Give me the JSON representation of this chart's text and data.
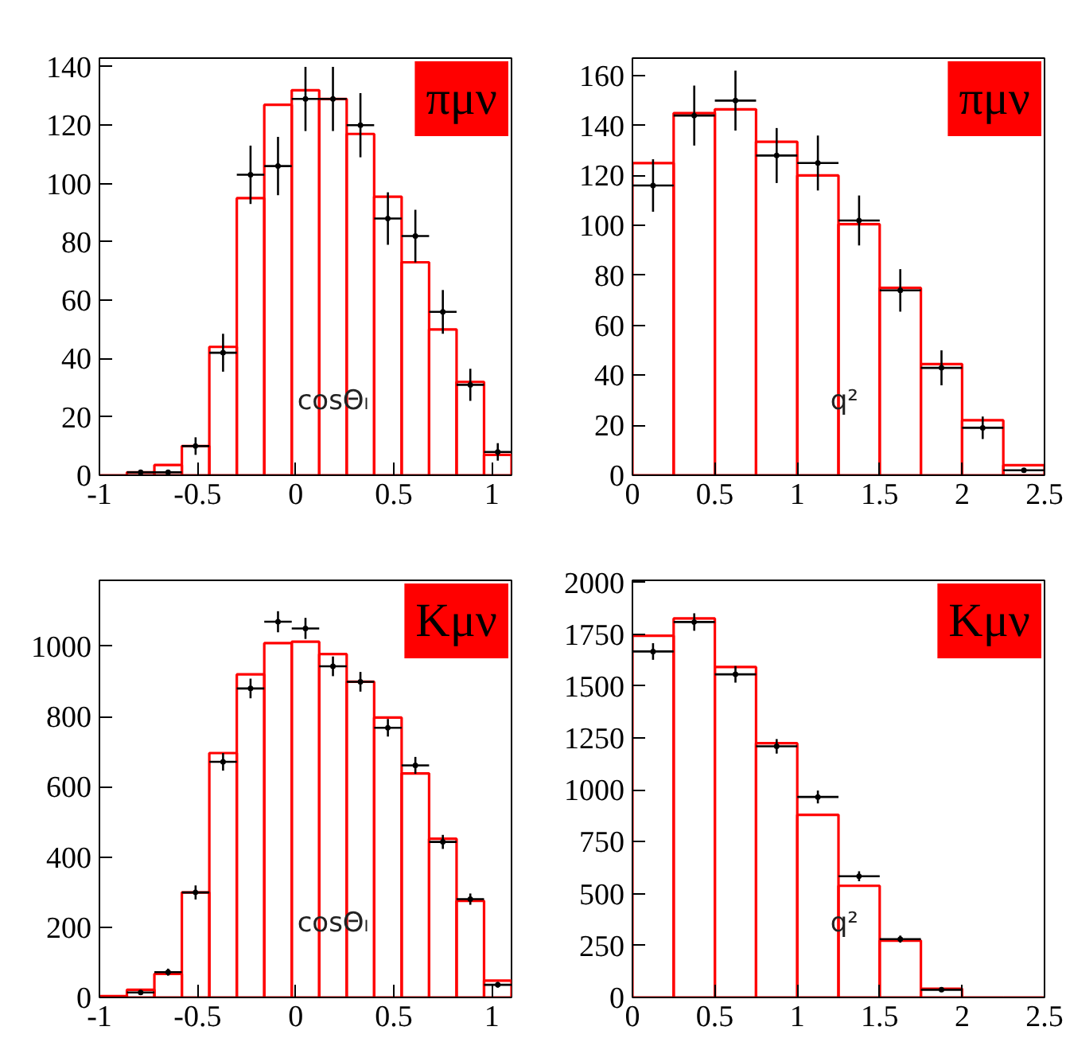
{
  "chart_data": [
    {
      "type": "histogram",
      "title": "πμν",
      "xlabel": "cosΘₗ",
      "bins": [
        -1,
        -0.86,
        -0.72,
        -0.58,
        -0.44,
        -0.3,
        -0.16,
        -0.02,
        0.12,
        0.26,
        0.4,
        0.54,
        0.68,
        0.82,
        0.96,
        1.1
      ],
      "xlim": [
        -1,
        1.1
      ],
      "xticks": [
        -1,
        -0.5,
        0,
        0.5,
        1
      ],
      "ylim": [
        0,
        143
      ],
      "yticks": [
        0,
        20,
        40,
        60,
        80,
        100,
        120,
        140
      ],
      "series": [
        {
          "color": "#ff0000",
          "values": [
            0,
            1,
            3.5,
            10,
            44,
            95,
            127,
            132,
            129,
            117,
            95.5,
            73,
            50,
            32,
            7
          ]
        },
        {
          "type": "scatter",
          "color": "#000000",
          "x": [
            -0.79,
            -0.65,
            -0.51,
            -0.37,
            -0.23,
            -0.09,
            0.05,
            0.19,
            0.33,
            0.47,
            0.61,
            0.75,
            0.89,
            1.03
          ],
          "values": [
            1,
            1,
            10,
            42,
            103,
            106,
            129,
            129,
            120,
            88,
            82,
            56,
            31,
            8
          ],
          "errors": [
            null,
            null,
            3,
            6.5,
            10,
            10,
            11,
            11,
            11,
            9,
            9,
            7.5,
            5.5,
            3
          ],
          "xerrors": [
            0.07,
            0.07,
            0.07,
            0.07,
            0.07,
            0.07,
            0.07,
            0.07,
            0.07,
            0.07,
            0.07,
            0.07,
            0.07,
            0.07
          ]
        }
      ]
    },
    {
      "type": "histogram",
      "title": "πμν",
      "xlabel": "q²",
      "bins": [
        0,
        0.25,
        0.5,
        0.75,
        1,
        1.25,
        1.5,
        1.75,
        2,
        2.25,
        2.5
      ],
      "xlim": [
        0,
        2.5
      ],
      "xticks": [
        0,
        0.5,
        1,
        1.5,
        2,
        2.5
      ],
      "ylim": [
        0,
        167
      ],
      "yticks": [
        0,
        20,
        40,
        60,
        80,
        100,
        120,
        140,
        160
      ],
      "series": [
        {
          "color": "#ff0000",
          "values": [
            125,
            145,
            146.5,
            133.5,
            120,
            100.5,
            75,
            44.5,
            22,
            4
          ]
        },
        {
          "type": "scatter",
          "color": "#000000",
          "x": [
            0.125,
            0.375,
            0.625,
            0.875,
            1.125,
            1.375,
            1.625,
            1.875,
            2.125,
            2.375
          ],
          "values": [
            116,
            144,
            150,
            128,
            125,
            102,
            74,
            43,
            19,
            2
          ],
          "errors": [
            10.5,
            12,
            12,
            11,
            11,
            10,
            8.5,
            7,
            4.5,
            null
          ],
          "xerrors": [
            0.125,
            0.125,
            0.125,
            0.125,
            0.125,
            0.125,
            0.125,
            0.125,
            0.125,
            0.125
          ]
        }
      ]
    },
    {
      "type": "histogram",
      "title": "Kμν",
      "xlabel": "cosΘₗ",
      "bins": [
        -1,
        -0.86,
        -0.72,
        -0.58,
        -0.44,
        -0.3,
        -0.16,
        -0.02,
        0.12,
        0.26,
        0.4,
        0.54,
        0.68,
        0.82,
        0.96,
        1.1
      ],
      "xlim": [
        -1,
        1.1
      ],
      "xticks": [
        -1,
        -0.5,
        0,
        0.5,
        1
      ],
      "ylim": [
        0,
        1188
      ],
      "yticks": [
        0,
        200,
        400,
        600,
        800,
        1000
      ],
      "series": [
        {
          "color": "#ff0000",
          "values": [
            4,
            22,
            67,
            299,
            696,
            920,
            1009,
            1013,
            978,
            899,
            797,
            638,
            452,
            275,
            48
          ]
        },
        {
          "type": "scatter",
          "color": "#000000",
          "x": [
            -0.79,
            -0.65,
            -0.51,
            -0.37,
            -0.23,
            -0.09,
            0.05,
            0.19,
            0.33,
            0.47,
            0.61,
            0.75,
            0.89,
            1.03
          ],
          "values": [
            14,
            72,
            299,
            671,
            880,
            1070,
            1051,
            943,
            899,
            768,
            661,
            443,
            280,
            36
          ],
          "errors": [
            5,
            10,
            20,
            25,
            28,
            30,
            30,
            28,
            28,
            25,
            24,
            20,
            16,
            8
          ],
          "xerrors": [
            0.07,
            0.07,
            0.07,
            0.07,
            0.07,
            0.07,
            0.07,
            0.07,
            0.07,
            0.07,
            0.07,
            0.07,
            0.07,
            0.07
          ]
        }
      ]
    },
    {
      "type": "histogram",
      "title": "Kμν",
      "xlabel": "q²",
      "bins": [
        0,
        0.25,
        0.5,
        0.75,
        1,
        1.25,
        1.5,
        1.75,
        2,
        2.25,
        2.5
      ],
      "xlim": [
        0,
        2.5
      ],
      "xticks": [
        0,
        0.5,
        1,
        1.5,
        2,
        2.5
      ],
      "ylim": [
        0,
        2010
      ],
      "yticks": [
        0,
        250,
        500,
        750,
        1000,
        1250,
        1500,
        1750,
        2000
      ],
      "series": [
        {
          "color": "#ff0000",
          "values": [
            1743,
            1826,
            1592,
            1225,
            880,
            538,
            274,
            42,
            0,
            0
          ]
        },
        {
          "type": "scatter",
          "color": "#000000",
          "x": [
            0.125,
            0.375,
            0.625,
            0.875,
            1.125,
            1.375,
            1.625,
            1.875
          ],
          "values": [
            1667,
            1809,
            1557,
            1210,
            966,
            584,
            281,
            37
          ],
          "errors": [
            40,
            42,
            40,
            35,
            31,
            24,
            17,
            6
          ],
          "xerrors": [
            0.125,
            0.125,
            0.125,
            0.125,
            0.125,
            0.125,
            0.125,
            0.125
          ]
        }
      ]
    }
  ]
}
